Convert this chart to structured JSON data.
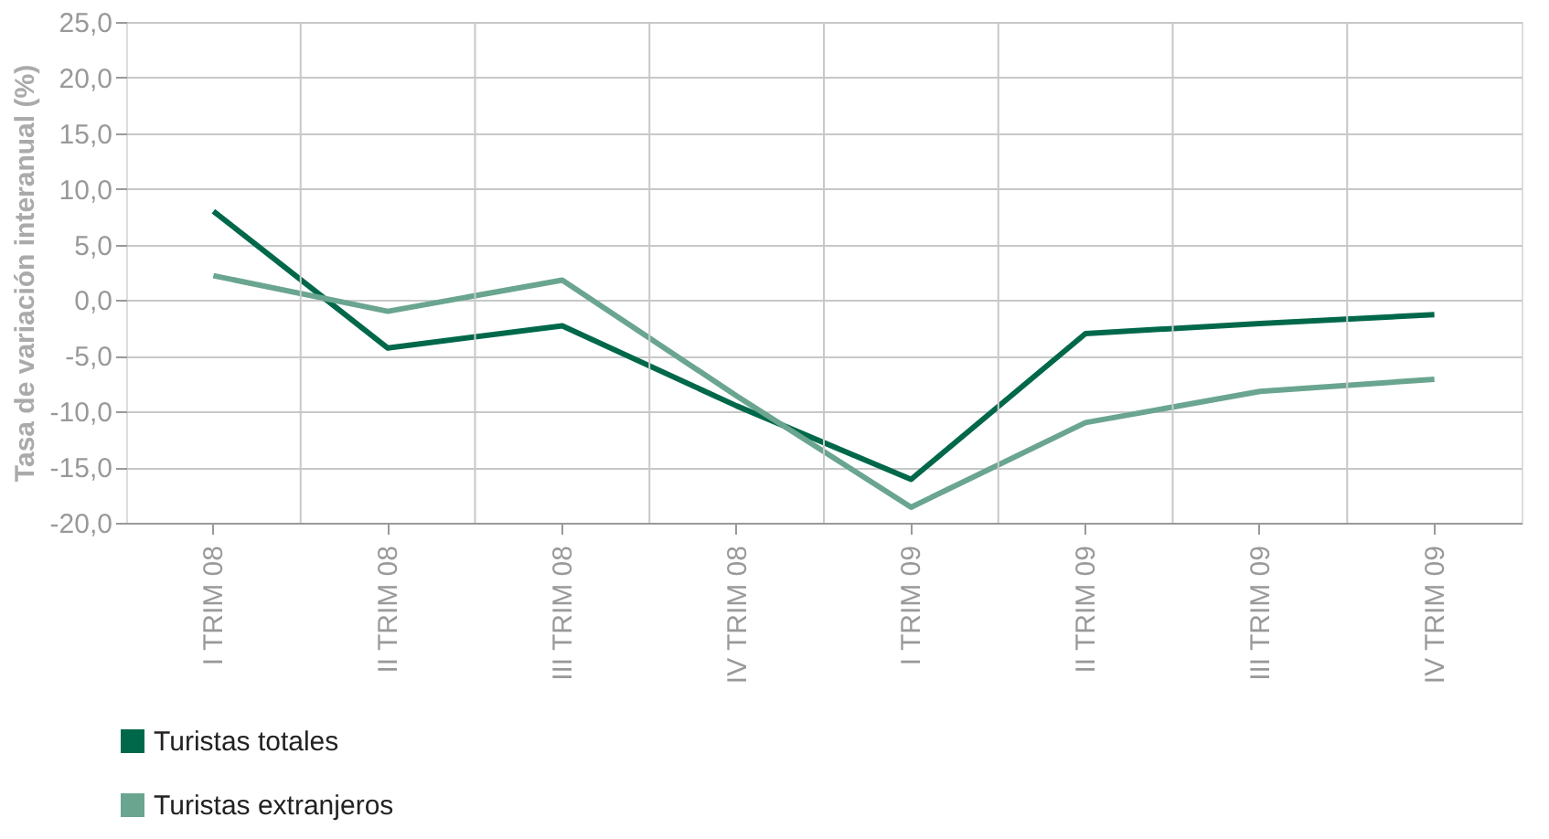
{
  "chart_data": {
    "type": "line",
    "ylabel": "Tasa de variación interanual (%)",
    "categories": [
      "I TRIM 08",
      "II TRIM 08",
      "III TRIM 08",
      "IV TRIM 08",
      "I TRIM 09",
      "II TRIM 09",
      "III TRIM 09",
      "IV TRIM 09"
    ],
    "series": [
      {
        "name": "Turistas totales",
        "color": "#00684a",
        "values": [
          8.0,
          -4.3,
          -2.3,
          -9.5,
          -16.1,
          -3.0,
          -2.1,
          -1.3
        ]
      },
      {
        "name": "Turistas extranjeros",
        "color": "#6aa590",
        "values": [
          2.2,
          -1.0,
          1.8,
          -8.6,
          -18.6,
          -11.0,
          -8.2,
          -7.1
        ]
      }
    ],
    "ylim": [
      -20,
      25
    ],
    "yticks": [
      {
        "value": -20,
        "label": "-20,0"
      },
      {
        "value": -15,
        "label": "-15,0"
      },
      {
        "value": -10,
        "label": "-10,0"
      },
      {
        "value": -5,
        "label": "-5,0"
      },
      {
        "value": 0,
        "label": "0,0"
      },
      {
        "value": 5,
        "label": "5,0"
      },
      {
        "value": 10,
        "label": "10,0"
      },
      {
        "value": 15,
        "label": "15,0"
      },
      {
        "value": 20,
        "label": "20,0"
      },
      {
        "value": 25,
        "label": "25,0"
      }
    ],
    "grid": true,
    "legend": "bottom left",
    "line_style": "solid",
    "marker": "none"
  }
}
